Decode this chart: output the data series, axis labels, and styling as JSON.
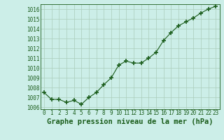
{
  "x": [
    0,
    1,
    2,
    3,
    4,
    5,
    6,
    7,
    8,
    9,
    10,
    11,
    12,
    13,
    14,
    15,
    16,
    17,
    18,
    19,
    20,
    21,
    22,
    23
  ],
  "y": [
    1007.5,
    1006.8,
    1006.8,
    1006.5,
    1006.7,
    1006.3,
    1007.0,
    1007.5,
    1008.3,
    1009.0,
    1010.3,
    1010.7,
    1010.5,
    1010.5,
    1011.0,
    1011.6,
    1012.8,
    1013.6,
    1014.3,
    1014.7,
    1015.1,
    1015.6,
    1016.0,
    1016.3
  ],
  "ylim": [
    1005.8,
    1016.5
  ],
  "yticks": [
    1006,
    1007,
    1008,
    1009,
    1010,
    1011,
    1012,
    1013,
    1014,
    1015,
    1016
  ],
  "xlabel": "Graphe pression niveau de la mer (hPa)",
  "line_color": "#1a5c1a",
  "marker": "+",
  "marker_size": 4.5,
  "marker_lw": 1.2,
  "bg_color": "#cceee8",
  "grid_color": "#aaccbb",
  "tick_fontsize": 5.5,
  "xlabel_fontsize": 7.5
}
